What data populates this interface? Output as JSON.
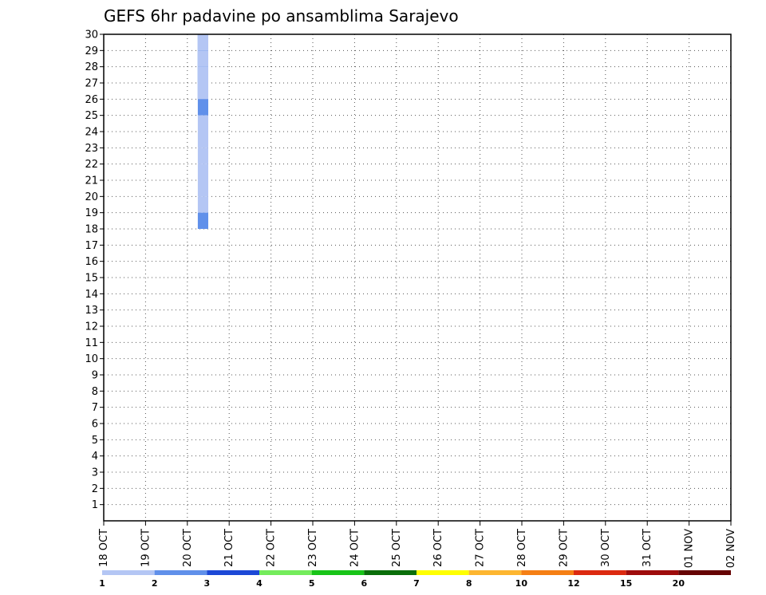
{
  "chart_data": {
    "type": "heatmap",
    "title": "GEFS 6hr padavine po ansamblima Sarajevo",
    "xlabel": "",
    "ylabel": "",
    "grid": true,
    "x_tick_labels": [
      "18 OCT",
      "19 OCT",
      "20 OCT",
      "21 OCT",
      "22 OCT",
      "23 OCT",
      "24 OCT",
      "25 OCT",
      "26 OCT",
      "27 OCT",
      "28 OCT",
      "29 OCT",
      "30 OCT",
      "31 OCT",
      "01 NOV",
      "02 NOV"
    ],
    "x_range_days": [
      0,
      15
    ],
    "steps_per_day": 4,
    "y_tick_labels": [
      1,
      2,
      3,
      4,
      5,
      6,
      7,
      8,
      9,
      10,
      11,
      12,
      13,
      14,
      15,
      16,
      17,
      18,
      19,
      20,
      21,
      22,
      23,
      24,
      25,
      26,
      27,
      28,
      29,
      30
    ],
    "y_range": [
      0,
      30
    ],
    "legend": {
      "labels": [
        "1",
        "2",
        "3",
        "4",
        "5",
        "6",
        "7",
        "8",
        "10",
        "12",
        "15",
        "20"
      ],
      "colors": [
        "#b4c6f4",
        "#6090ea",
        "#1c48d6",
        "#74ec5c",
        "#18c418",
        "#0a6e0a",
        "#ffff00",
        "#fdb630",
        "#f57f14",
        "#dc2a10",
        "#9e0c0c",
        "#660404"
      ]
    },
    "cells": [
      {
        "t": 9,
        "m": 30,
        "c": 1
      },
      {
        "t": 9,
        "m": 30,
        "c": 2
      },
      {
        "t": 9,
        "m": 30,
        "c": 2
      },
      {
        "t": 9,
        "m": 30,
        "c": 1
      },
      {
        "t": 9,
        "m": 29,
        "c": 2
      },
      {
        "t": 9,
        "m": 29,
        "c": 2
      },
      {
        "t": 9,
        "m": 29,
        "c": 2
      },
      {
        "t": 9,
        "m": 29,
        "c": 1
      },
      {
        "t": 9,
        "m": 28,
        "c": 2
      },
      {
        "t": 9,
        "m": 28,
        "c": 2
      },
      {
        "t": 9,
        "m": 28,
        "c": 2
      },
      {
        "t": 9,
        "m": 28,
        "c": 1
      },
      {
        "t": 9,
        "m": 27,
        "c": 1
      },
      {
        "t": 9,
        "m": 27,
        "c": 2
      },
      {
        "t": 9,
        "m": 27,
        "c": 2
      },
      {
        "t": 9,
        "m": 27,
        "c": 1
      },
      {
        "t": 9,
        "m": 26,
        "c": 2
      },
      {
        "t": 9,
        "m": 25,
        "c": 1
      },
      {
        "t": 9,
        "m": 24,
        "c": 1
      },
      {
        "t": 9,
        "m": 23,
        "c": 1
      },
      {
        "t": 9,
        "m": 22,
        "c": 1
      },
      {
        "t": 9,
        "m": 21,
        "c": 1
      },
      {
        "t": 9,
        "m": 20,
        "c": 1
      },
      {
        "t": 9,
        "m": 19,
        "c": 2
      }
    ]
  }
}
